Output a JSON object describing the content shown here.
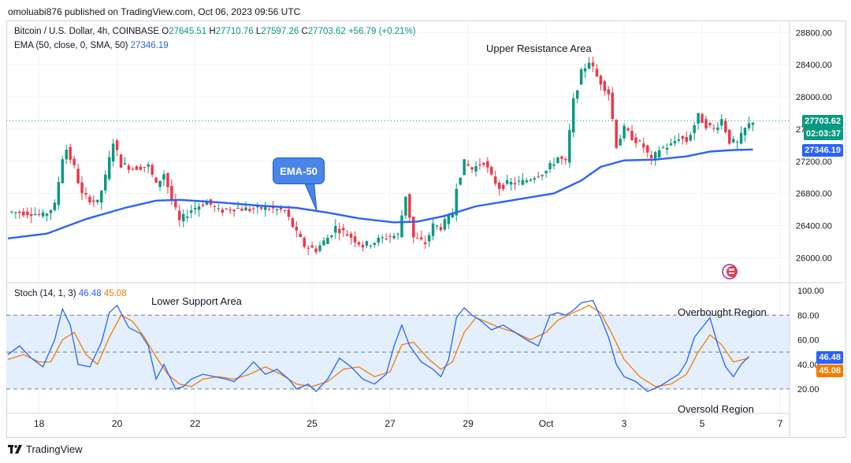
{
  "header": {
    "publisher": "omoluabi876 published on TradingView.com, Oct 06, 2023 09:56 UTC"
  },
  "legend": {
    "symbol": "Bitcoin / U.S. Dollar, 4h, COINBASE",
    "o_label": "O",
    "o": "27645.51",
    "h_label": "H",
    "h": "27710.76",
    "l_label": "L",
    "l": "27597.26",
    "c_label": "C",
    "c": "27703.62",
    "change": "+56.79 (+0.21%)",
    "ema_label": "EMA (50, close, 0, SMA, 50)",
    "ema_value": "27346.19",
    "stoch_label": "Stoch (14, 1, 3)",
    "stoch_k": "46.48",
    "stoch_d": "45.08"
  },
  "annotations": {
    "upper": "Upper Resistance Area",
    "lower": "Lower Support Area",
    "overbought": "Overbought Region",
    "oversold": "Oversold Region",
    "ema_callout": "EMA-50"
  },
  "price_tags": {
    "last_price": "27703.62",
    "countdown": "02:03:37",
    "ema": "27346.19",
    "stoch_k": "46.48",
    "stoch_d": "45.08"
  },
  "colors": {
    "up": "#089981",
    "down": "#f23645",
    "ema": "#2962ff",
    "stoch_k": "#2962ff",
    "stoch_d": "#f57c00",
    "band": "#e3effd"
  },
  "footer": {
    "brand": "TradingView"
  },
  "chart_data": [
    {
      "type": "candlestick",
      "title": "Bitcoin / U.S. Dollar, 4h, COINBASE",
      "ylim": [
        25700,
        28950
      ],
      "y_ticks": [
        26000,
        26400,
        26800,
        27200,
        27600,
        28000,
        28400,
        28800
      ],
      "y_tick_labels": [
        "26000.00",
        "26400.00",
        "26800.00",
        "27200.00",
        "27600.00",
        "28000.00",
        "28400.00",
        "28800.00"
      ],
      "x_tick_labels": [
        "18",
        "20",
        "22",
        "25",
        "27",
        "29",
        "Oct",
        "3",
        "5",
        "7"
      ],
      "x_tick_bar_index": [
        8,
        28,
        48,
        78,
        98,
        118,
        138,
        158,
        178,
        198
      ],
      "last_bar_index": 191,
      "ohlc_close_path": [
        [
          0,
          26570
        ],
        [
          6,
          26560
        ],
        [
          9,
          26520
        ],
        [
          12,
          26650
        ],
        [
          14,
          27250
        ],
        [
          15,
          27350
        ],
        [
          17,
          27120
        ],
        [
          19,
          26780
        ],
        [
          23,
          26680
        ],
        [
          25,
          27000
        ],
        [
          27,
          27450
        ],
        [
          29,
          27160
        ],
        [
          32,
          27120
        ],
        [
          36,
          27140
        ],
        [
          38,
          26900
        ],
        [
          40,
          27050
        ],
        [
          42,
          26720
        ],
        [
          44,
          26450
        ],
        [
          47,
          26600
        ],
        [
          51,
          26700
        ],
        [
          54,
          26580
        ],
        [
          58,
          26620
        ],
        [
          62,
          26600
        ],
        [
          66,
          26620
        ],
        [
          71,
          26580
        ],
        [
          74,
          26300
        ],
        [
          76,
          26150
        ],
        [
          79,
          26100
        ],
        [
          82,
          26250
        ],
        [
          84,
          26380
        ],
        [
          88,
          26260
        ],
        [
          91,
          26150
        ],
        [
          94,
          26200
        ],
        [
          97,
          26260
        ],
        [
          100,
          26280
        ],
        [
          102,
          26780
        ],
        [
          104,
          26250
        ],
        [
          107,
          26180
        ],
        [
          109,
          26400
        ],
        [
          111,
          26380
        ],
        [
          114,
          26550
        ],
        [
          115,
          26900
        ],
        [
          117,
          27180
        ],
        [
          119,
          27100
        ],
        [
          122,
          27200
        ],
        [
          124,
          27000
        ],
        [
          126,
          26880
        ],
        [
          128,
          26920
        ],
        [
          132,
          26940
        ],
        [
          135,
          27020
        ],
        [
          138,
          27080
        ],
        [
          141,
          27250
        ],
        [
          143,
          27180
        ],
        [
          145,
          27950
        ],
        [
          147,
          28300
        ],
        [
          149,
          28450
        ],
        [
          151,
          28250
        ],
        [
          154,
          28050
        ],
        [
          156,
          27400
        ],
        [
          158,
          27600
        ],
        [
          160,
          27500
        ],
        [
          163,
          27380
        ],
        [
          165,
          27200
        ],
        [
          167,
          27350
        ],
        [
          170,
          27400
        ],
        [
          172,
          27500
        ],
        [
          174,
          27450
        ],
        [
          175,
          27550
        ],
        [
          177,
          27760
        ],
        [
          179,
          27650
        ],
        [
          181,
          27600
        ],
        [
          183,
          27720
        ],
        [
          185,
          27450
        ],
        [
          187,
          27420
        ],
        [
          189,
          27600
        ],
        [
          191,
          27704
        ]
      ],
      "ema50_path": [
        [
          0,
          26240
        ],
        [
          10,
          26300
        ],
        [
          20,
          26480
        ],
        [
          30,
          26620
        ],
        [
          38,
          26710
        ],
        [
          44,
          26720
        ],
        [
          54,
          26690
        ],
        [
          64,
          26650
        ],
        [
          74,
          26620
        ],
        [
          82,
          26560
        ],
        [
          90,
          26490
        ],
        [
          99,
          26440
        ],
        [
          105,
          26450
        ],
        [
          112,
          26520
        ],
        [
          120,
          26640
        ],
        [
          130,
          26720
        ],
        [
          140,
          26800
        ],
        [
          147,
          26960
        ],
        [
          152,
          27130
        ],
        [
          158,
          27210
        ],
        [
          166,
          27220
        ],
        [
          174,
          27260
        ],
        [
          180,
          27320
        ],
        [
          186,
          27340
        ],
        [
          191,
          27346
        ]
      ]
    },
    {
      "type": "line",
      "title": "Stoch (14, 1, 3)",
      "ylim": [
        0,
        100
      ],
      "y_ticks": [
        20,
        40,
        60,
        80,
        100
      ],
      "y_tick_labels": [
        "20.00",
        "40.00",
        "60.00",
        "80.00",
        "100.00"
      ],
      "bands": {
        "upper": 80,
        "middle": 50,
        "lower": 20
      },
      "series": [
        {
          "name": "%K",
          "points": [
            [
              0,
              48
            ],
            [
              3,
              55
            ],
            [
              6,
              45
            ],
            [
              9,
              38
            ],
            [
              12,
              60
            ],
            [
              14,
              85
            ],
            [
              16,
              72
            ],
            [
              18,
              40
            ],
            [
              21,
              38
            ],
            [
              24,
              58
            ],
            [
              26,
              82
            ],
            [
              28,
              88
            ],
            [
              31,
              70
            ],
            [
              34,
              65
            ],
            [
              36,
              55
            ],
            [
              38,
              28
            ],
            [
              40,
              40
            ],
            [
              43,
              20
            ],
            [
              45,
              22
            ],
            [
              47,
              28
            ],
            [
              50,
              32
            ],
            [
              53,
              30
            ],
            [
              56,
              28
            ],
            [
              58,
              26
            ],
            [
              61,
              35
            ],
            [
              63,
              42
            ],
            [
              66,
              32
            ],
            [
              69,
              36
            ],
            [
              72,
              28
            ],
            [
              74,
              20
            ],
            [
              77,
              24
            ],
            [
              79,
              18
            ],
            [
              82,
              28
            ],
            [
              85,
              45
            ],
            [
              88,
              38
            ],
            [
              91,
              28
            ],
            [
              94,
              24
            ],
            [
              97,
              32
            ],
            [
              99,
              55
            ],
            [
              101,
              72
            ],
            [
              103,
              55
            ],
            [
              106,
              42
            ],
            [
              109,
              36
            ],
            [
              111,
              30
            ],
            [
              113,
              44
            ],
            [
              115,
              78
            ],
            [
              117,
              86
            ],
            [
              119,
              80
            ],
            [
              121,
              76
            ],
            [
              124,
              68
            ],
            [
              127,
              72
            ],
            [
              130,
              66
            ],
            [
              133,
              60
            ],
            [
              136,
              55
            ],
            [
              139,
              80
            ],
            [
              141,
              82
            ],
            [
              143,
              80
            ],
            [
              145,
              84
            ],
            [
              147,
              90
            ],
            [
              150,
              92
            ],
            [
              152,
              78
            ],
            [
              154,
              62
            ],
            [
              156,
              40
            ],
            [
              158,
              30
            ],
            [
              161,
              26
            ],
            [
              164,
              18
            ],
            [
              167,
              22
            ],
            [
              170,
              28
            ],
            [
              172,
              32
            ],
            [
              174,
              42
            ],
            [
              176,
              62
            ],
            [
              178,
              70
            ],
            [
              180,
              78
            ],
            [
              182,
              56
            ],
            [
              184,
              38
            ],
            [
              186,
              30
            ],
            [
              188,
              40
            ],
            [
              190,
              46.48
            ]
          ]
        },
        {
          "name": "%D",
          "points": [
            [
              0,
              44
            ],
            [
              4,
              48
            ],
            [
              8,
              42
            ],
            [
              11,
              42
            ],
            [
              14,
              60
            ],
            [
              17,
              66
            ],
            [
              20,
              48
            ],
            [
              23,
              40
            ],
            [
              26,
              62
            ],
            [
              29,
              80
            ],
            [
              32,
              75
            ],
            [
              35,
              62
            ],
            [
              38,
              46
            ],
            [
              41,
              32
            ],
            [
              44,
              24
            ],
            [
              47,
              22
            ],
            [
              50,
              28
            ],
            [
              54,
              30
            ],
            [
              58,
              28
            ],
            [
              62,
              32
            ],
            [
              66,
              38
            ],
            [
              70,
              32
            ],
            [
              74,
              24
            ],
            [
              78,
              22
            ],
            [
              82,
              26
            ],
            [
              86,
              36
            ],
            [
              90,
              38
            ],
            [
              94,
              30
            ],
            [
              98,
              34
            ],
            [
              101,
              56
            ],
            [
              104,
              58
            ],
            [
              108,
              44
            ],
            [
              111,
              36
            ],
            [
              114,
              42
            ],
            [
              117,
              66
            ],
            [
              120,
              78
            ],
            [
              123,
              74
            ],
            [
              126,
              70
            ],
            [
              130,
              66
            ],
            [
              134,
              60
            ],
            [
              138,
              66
            ],
            [
              141,
              76
            ],
            [
              145,
              82
            ],
            [
              149,
              88
            ],
            [
              152,
              82
            ],
            [
              155,
              64
            ],
            [
              158,
              44
            ],
            [
              162,
              30
            ],
            [
              166,
              22
            ],
            [
              170,
              24
            ],
            [
              174,
              32
            ],
            [
              177,
              50
            ],
            [
              180,
              64
            ],
            [
              183,
              56
            ],
            [
              186,
              42
            ],
            [
              190,
              45.08
            ]
          ]
        }
      ]
    }
  ]
}
